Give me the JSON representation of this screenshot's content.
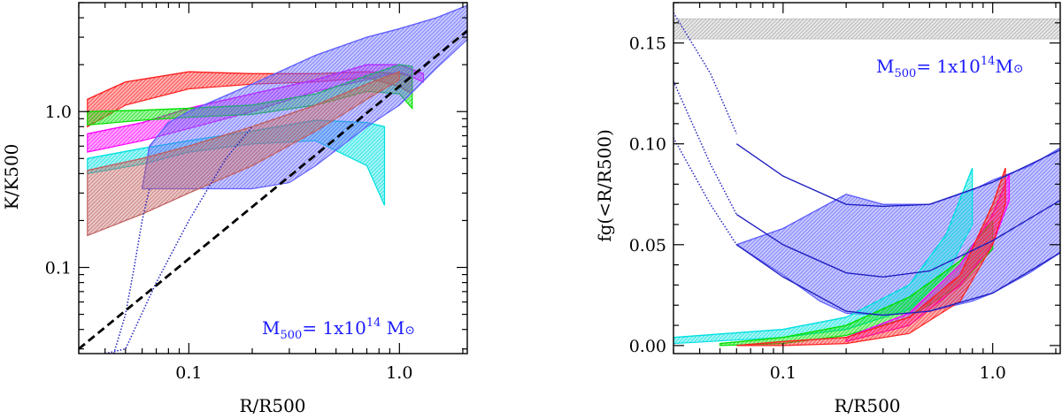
{
  "chart_data": [
    {
      "type": "line",
      "panel": "left",
      "xlabel": "R/R500",
      "ylabel": "K/K500",
      "xscale": "log",
      "yscale": "log",
      "xlim": [
        0.03,
        2.1
      ],
      "ylim": [
        0.028,
        5.0
      ],
      "xticks": [
        {
          "v": 0.1,
          "label": "0.1"
        },
        {
          "v": 1.0,
          "label": "1.0"
        }
      ],
      "yticks": [
        {
          "v": 0.1,
          "label": "0.1"
        },
        {
          "v": 1.0,
          "label": "1.0"
        }
      ],
      "annotation": {
        "prefix": "M",
        "sub": "500",
        "mid": "= 1x10",
        "sup": "14",
        "suffix": " M",
        "sym": "⊙"
      },
      "reference_line": {
        "color": "#000000",
        "points": [
          [
            0.03,
            0.03
          ],
          [
            2.1,
            3.3
          ]
        ]
      },
      "bands": [
        {
          "color": "#ff2020",
          "upper": [
            [
              0.033,
              1.2
            ],
            [
              0.05,
              1.55
            ],
            [
              0.1,
              1.8
            ],
            [
              0.2,
              1.75
            ],
            [
              0.4,
              1.75
            ],
            [
              0.7,
              1.8
            ],
            [
              1.0,
              1.75
            ],
            [
              1.15,
              1.7
            ]
          ],
          "lower": [
            [
              0.033,
              0.8
            ],
            [
              0.05,
              1.1
            ],
            [
              0.1,
              1.4
            ],
            [
              0.2,
              1.5
            ],
            [
              0.4,
              1.55
            ],
            [
              0.7,
              1.65
            ],
            [
              1.0,
              1.45
            ],
            [
              1.15,
              1.3
            ]
          ]
        },
        {
          "color": "#ff00ff",
          "upper": [
            [
              0.033,
              0.72
            ],
            [
              0.06,
              0.85
            ],
            [
              0.1,
              1.05
            ],
            [
              0.2,
              1.3
            ],
            [
              0.4,
              1.6
            ],
            [
              0.7,
              2.0
            ],
            [
              1.0,
              2.0
            ],
            [
              1.3,
              1.75
            ]
          ],
          "lower": [
            [
              0.033,
              0.55
            ],
            [
              0.06,
              0.65
            ],
            [
              0.1,
              0.78
            ],
            [
              0.2,
              1.0
            ],
            [
              0.4,
              1.35
            ],
            [
              0.7,
              1.6
            ],
            [
              1.0,
              1.8
            ],
            [
              1.3,
              1.55
            ]
          ]
        },
        {
          "color": "#00e000",
          "upper": [
            [
              0.033,
              1.0
            ],
            [
              0.06,
              1.02
            ],
            [
              0.1,
              1.05
            ],
            [
              0.2,
              1.1
            ],
            [
              0.4,
              1.3
            ],
            [
              0.7,
              1.7
            ],
            [
              1.0,
              2.0
            ],
            [
              1.15,
              1.95
            ]
          ],
          "lower": [
            [
              0.033,
              0.82
            ],
            [
              0.06,
              0.88
            ],
            [
              0.1,
              0.92
            ],
            [
              0.2,
              0.96
            ],
            [
              0.4,
              1.1
            ],
            [
              0.7,
              1.35
            ],
            [
              1.0,
              1.3
            ],
            [
              1.15,
              1.05
            ]
          ]
        },
        {
          "color": "#00e0e0",
          "upper": [
            [
              0.033,
              0.5
            ],
            [
              0.06,
              0.58
            ],
            [
              0.1,
              0.65
            ],
            [
              0.2,
              0.75
            ],
            [
              0.4,
              0.88
            ],
            [
              0.7,
              0.85
            ],
            [
              0.85,
              0.8
            ]
          ],
          "lower": [
            [
              0.033,
              0.4
            ],
            [
              0.06,
              0.46
            ],
            [
              0.1,
              0.55
            ],
            [
              0.2,
              0.62
            ],
            [
              0.4,
              0.65
            ],
            [
              0.7,
              0.45
            ],
            [
              0.85,
              0.25
            ]
          ]
        },
        {
          "color": "#6060ff",
          "upper": [
            [
              0.06,
              0.32
            ],
            [
              0.065,
              0.6
            ],
            [
              0.08,
              0.85
            ],
            [
              0.1,
              1.0
            ],
            [
              0.2,
              1.5
            ],
            [
              0.4,
              2.3
            ],
            [
              0.7,
              3.0
            ],
            [
              1.0,
              3.4
            ],
            [
              1.5,
              4.0
            ],
            [
              2.1,
              4.8
            ]
          ],
          "lower": [
            [
              0.06,
              0.32
            ],
            [
              0.1,
              0.32
            ],
            [
              0.2,
              0.32
            ],
            [
              0.3,
              0.35
            ],
            [
              0.4,
              0.45
            ],
            [
              0.7,
              0.8
            ],
            [
              1.0,
              1.1
            ],
            [
              1.5,
              1.9
            ],
            [
              2.1,
              2.9
            ]
          ]
        },
        {
          "color": "#c06060",
          "upper": [
            [
              0.033,
              0.42
            ],
            [
              0.06,
              0.5
            ],
            [
              0.1,
              0.6
            ],
            [
              0.2,
              0.8
            ],
            [
              0.4,
              1.1
            ],
            [
              0.7,
              1.5
            ],
            [
              1.0,
              1.8
            ]
          ],
          "lower": [
            [
              0.033,
              0.16
            ],
            [
              0.06,
              0.22
            ],
            [
              0.1,
              0.3
            ],
            [
              0.2,
              0.45
            ],
            [
              0.4,
              0.75
            ],
            [
              0.7,
              1.2
            ],
            [
              1.0,
              1.6
            ]
          ]
        }
      ],
      "dotted_lines": [
        {
          "color": "#2020c0",
          "points": [
            [
              0.044,
              0.028
            ],
            [
              0.05,
              0.05
            ],
            [
              0.055,
              0.1
            ],
            [
              0.06,
              0.2
            ],
            [
              0.065,
              0.32
            ]
          ]
        },
        {
          "color": "#2020c0",
          "points": [
            [
              0.04,
              0.028
            ],
            [
              0.05,
              0.03
            ],
            [
              0.07,
              0.08
            ],
            [
              0.1,
              0.2
            ],
            [
              0.15,
              0.5
            ],
            [
              0.2,
              0.8
            ]
          ]
        }
      ]
    },
    {
      "type": "line",
      "panel": "right",
      "xlabel": "R/R500",
      "ylabel": "fg(<R/R500)",
      "xscale": "log",
      "yscale": "linear",
      "xlim": [
        0.03,
        2.1
      ],
      "ylim": [
        -0.004,
        0.17
      ],
      "xticks": [
        {
          "v": 0.1,
          "label": "0.1"
        },
        {
          "v": 1.0,
          "label": "1.0"
        }
      ],
      "yticks": [
        {
          "v": 0.0,
          "label": "0.00"
        },
        {
          "v": 0.05,
          "label": "0.05"
        },
        {
          "v": 0.1,
          "label": "0.10"
        },
        {
          "v": 0.15,
          "label": "0.15"
        }
      ],
      "annotation": {
        "prefix": "M",
        "sub": "500",
        "mid": "= 1x10",
        "sup": "14",
        "suffix": "M",
        "sym": "⊙"
      },
      "horizontal_band": {
        "color": "#b0b0b0",
        "y_low": 0.152,
        "y_high": 0.162
      },
      "bands": [
        {
          "color": "#6060ff",
          "upper": [
            [
              0.06,
              0.05
            ],
            [
              0.1,
              0.058
            ],
            [
              0.2,
              0.075
            ],
            [
              0.3,
              0.07
            ],
            [
              0.5,
              0.07
            ],
            [
              0.8,
              0.077
            ],
            [
              1.0,
              0.082
            ],
            [
              1.5,
              0.089
            ],
            [
              2.1,
              0.098
            ]
          ],
          "lower": [
            [
              0.06,
              0.05
            ],
            [
              0.1,
              0.035
            ],
            [
              0.15,
              0.022
            ],
            [
              0.2,
              0.016
            ],
            [
              0.3,
              0.015
            ],
            [
              0.5,
              0.017
            ],
            [
              0.8,
              0.022
            ],
            [
              1.0,
              0.026
            ],
            [
              1.5,
              0.036
            ],
            [
              2.1,
              0.046
            ]
          ]
        },
        {
          "color": "#00e0e0",
          "upper": [
            [
              0.03,
              0.004
            ],
            [
              0.1,
              0.008
            ],
            [
              0.2,
              0.014
            ],
            [
              0.4,
              0.03
            ],
            [
              0.6,
              0.055
            ],
            [
              0.8,
              0.088
            ]
          ],
          "lower": [
            [
              0.03,
              0.001
            ],
            [
              0.1,
              0.004
            ],
            [
              0.2,
              0.008
            ],
            [
              0.4,
              0.018
            ],
            [
              0.6,
              0.035
            ],
            [
              0.8,
              0.06
            ]
          ]
        },
        {
          "color": "#00e000",
          "upper": [
            [
              0.05,
              0.001
            ],
            [
              0.1,
              0.004
            ],
            [
              0.2,
              0.01
            ],
            [
              0.4,
              0.024
            ],
            [
              0.7,
              0.042
            ],
            [
              1.0,
              0.062
            ]
          ],
          "lower": [
            [
              0.05,
              0.0
            ],
            [
              0.1,
              0.001
            ],
            [
              0.2,
              0.005
            ],
            [
              0.4,
              0.014
            ],
            [
              0.7,
              0.03
            ],
            [
              1.0,
              0.048
            ]
          ]
        },
        {
          "color": "#ff00ff",
          "upper": [
            [
              0.2,
              0.004
            ],
            [
              0.4,
              0.016
            ],
            [
              0.7,
              0.04
            ],
            [
              1.0,
              0.065
            ],
            [
              1.2,
              0.085
            ]
          ],
          "lower": [
            [
              0.2,
              0.002
            ],
            [
              0.4,
              0.01
            ],
            [
              0.7,
              0.03
            ],
            [
              1.0,
              0.05
            ],
            [
              1.2,
              0.072
            ]
          ]
        },
        {
          "color": "#ff2020",
          "upper": [
            [
              0.06,
              0.0
            ],
            [
              0.1,
              0.002
            ],
            [
              0.2,
              0.004
            ],
            [
              0.4,
              0.014
            ],
            [
              0.7,
              0.035
            ],
            [
              1.0,
              0.07
            ],
            [
              1.15,
              0.088
            ]
          ],
          "lower": [
            [
              0.06,
              0.0
            ],
            [
              0.1,
              0.0
            ],
            [
              0.2,
              0.001
            ],
            [
              0.4,
              0.006
            ],
            [
              0.7,
              0.022
            ],
            [
              1.0,
              0.05
            ],
            [
              1.15,
              0.07
            ]
          ]
        }
      ],
      "solid_lines": [
        {
          "color": "#2020c0",
          "points": [
            [
              0.06,
              0.1
            ],
            [
              0.1,
              0.084
            ],
            [
              0.2,
              0.07
            ],
            [
              0.3,
              0.069
            ],
            [
              0.5,
              0.07
            ],
            [
              1.0,
              0.081
            ],
            [
              2.1,
              0.097
            ]
          ]
        },
        {
          "color": "#2020c0",
          "points": [
            [
              0.06,
              0.065
            ],
            [
              0.1,
              0.05
            ],
            [
              0.2,
              0.036
            ],
            [
              0.3,
              0.034
            ],
            [
              0.5,
              0.037
            ],
            [
              1.0,
              0.052
            ],
            [
              2.1,
              0.072
            ]
          ]
        },
        {
          "color": "#2020c0",
          "points": [
            [
              0.06,
              0.05
            ],
            [
              0.1,
              0.034
            ],
            [
              0.2,
              0.017
            ],
            [
              0.3,
              0.015
            ],
            [
              0.5,
              0.017
            ],
            [
              1.0,
              0.026
            ],
            [
              2.1,
              0.046
            ]
          ]
        }
      ],
      "dotted_lines": [
        {
          "color": "#2020c0",
          "points": [
            [
              0.03,
              0.165
            ],
            [
              0.045,
              0.135
            ],
            [
              0.06,
              0.105
            ]
          ]
        },
        {
          "color": "#2020c0",
          "points": [
            [
              0.03,
              0.131
            ],
            [
              0.045,
              0.09
            ],
            [
              0.06,
              0.065
            ]
          ]
        },
        {
          "color": "#2020c0",
          "points": [
            [
              0.03,
              0.103
            ],
            [
              0.045,
              0.07
            ],
            [
              0.06,
              0.05
            ]
          ]
        }
      ]
    }
  ]
}
